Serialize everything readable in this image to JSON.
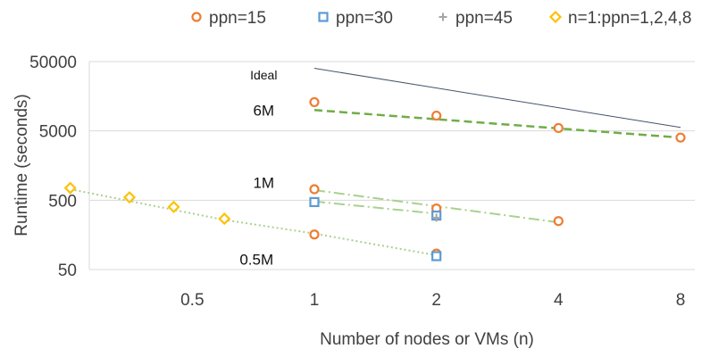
{
  "chart_data": {
    "type": "line",
    "title": "",
    "xlabel": "Number of nodes or VMs (n)",
    "ylabel": "Runtime (seconds)",
    "x_scale": "log2",
    "y_scale": "log10",
    "xlim": [
      0.25,
      8
    ],
    "ylim": [
      50,
      50000
    ],
    "x_ticks": [
      0.5,
      1,
      2,
      4,
      8
    ],
    "x_tick_labels": [
      "0.5",
      "1",
      "2",
      "4",
      "8"
    ],
    "y_ticks": [
      50,
      500,
      5000,
      50000
    ],
    "y_tick_labels": [
      "50",
      "500",
      "5000",
      "50000"
    ],
    "grid": "horizontal",
    "legend_position": "top",
    "legend": [
      {
        "label": "ppn=15",
        "marker": "circle",
        "color": "#ED7D31"
      },
      {
        "label": "ppn=30",
        "marker": "square",
        "color": "#5B9BD5"
      },
      {
        "label": "ppn=45",
        "marker": "plus",
        "color": "#A5A5A5"
      },
      {
        "label": "n=1:ppn=1,2,4,8",
        "marker": "diamond",
        "color": "#FFC000"
      }
    ],
    "series": [
      {
        "name": "ppn=15",
        "marker": "circle",
        "color": "#ED7D31",
        "points": [
          [
            1,
            13000
          ],
          [
            2,
            8300
          ],
          [
            4,
            5500
          ],
          [
            8,
            4000
          ],
          [
            1,
            720
          ],
          [
            2,
            380
          ],
          [
            4,
            250
          ],
          [
            1,
            160
          ],
          [
            2,
            85
          ]
        ]
      },
      {
        "name": "ppn=30",
        "marker": "square",
        "color": "#5B9BD5",
        "points": [
          [
            1,
            470
          ],
          [
            2,
            300
          ],
          [
            2,
            78
          ]
        ]
      },
      {
        "name": "ppn=45",
        "marker": "plus",
        "color": "#A5A5A5",
        "points": [
          [
            2,
            280
          ]
        ]
      },
      {
        "name": "n=1:ppn=1,2,4,8",
        "marker": "diamond",
        "color": "#FFC000",
        "points": [
          [
            0.25,
            750
          ],
          [
            0.35,
            550
          ],
          [
            0.45,
            400
          ],
          [
            0.6,
            270
          ]
        ]
      }
    ],
    "trend_lines": [
      {
        "style": "dashed",
        "color": "#70AD47",
        "points": [
          [
            1,
            10000
          ],
          [
            8,
            4000
          ]
        ]
      },
      {
        "style": "dashdot",
        "color": "#A9D18E",
        "points": [
          [
            1,
            700
          ],
          [
            4,
            240
          ]
        ]
      },
      {
        "style": "dashdot",
        "color": "#A9D18E",
        "points": [
          [
            1,
            480
          ],
          [
            2,
            320
          ]
        ]
      },
      {
        "style": "dotted",
        "color": "#A9D18E",
        "points": [
          [
            0.25,
            720
          ],
          [
            0.6,
            260
          ],
          [
            1,
            165
          ],
          [
            2,
            80
          ]
        ]
      },
      {
        "style": "solid",
        "color": "#44546A",
        "points": [
          [
            1,
            40000
          ],
          [
            8,
            5600
          ]
        ]
      }
    ],
    "annotations": [
      {
        "text": "Ideal",
        "x": 0.75,
        "y": 33000
      },
      {
        "text": "6M",
        "x": 0.75,
        "y": 10000
      },
      {
        "text": "1M",
        "x": 0.75,
        "y": 900
      },
      {
        "text": "0.5M",
        "x": 0.72,
        "y": 70
      }
    ]
  }
}
